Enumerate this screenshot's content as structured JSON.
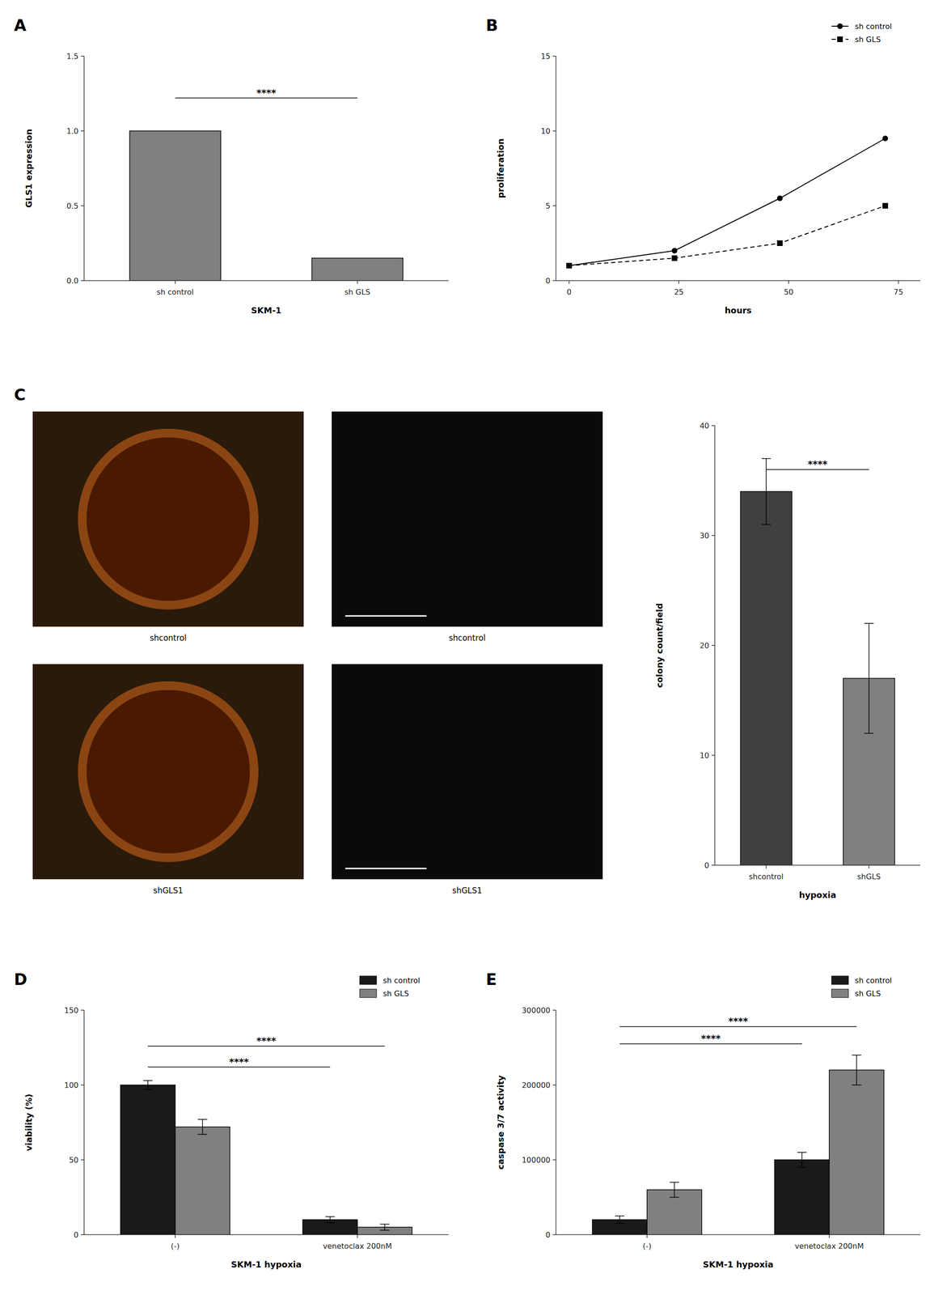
{
  "chart_data": [
    {
      "type": "bar",
      "title": "A",
      "categories": [
        "sh control",
        "sh GLS"
      ],
      "values": [
        1.0,
        0.15
      ],
      "color": "#808080",
      "xlabel": "SKM-1",
      "ylabel": "GLS1 expression",
      "ylim": [
        0,
        1.5
      ],
      "yticks": [
        {
          "value": 0,
          "label": "0.0"
        },
        0.5,
        {
          "value": 1,
          "label": "1.0"
        },
        1.5
      ],
      "grid": false,
      "annotations": [
        {
          "text": "****",
          "y": 1.22
        }
      ]
    },
    {
      "type": "line",
      "title": "B",
      "x": [
        0,
        24,
        48,
        72
      ],
      "series": [
        {
          "name": "sh control",
          "color": "#000000",
          "marker": "circle",
          "line_style": "solid",
          "values": [
            1.0,
            2.0,
            5.5,
            9.5
          ]
        },
        {
          "name": "sh GLS",
          "color": "#000000",
          "marker": "square",
          "line_style": "dashed",
          "values": [
            1.0,
            1.5,
            2.5,
            5.0
          ]
        }
      ],
      "xlabel": "hours",
      "ylabel": "proliferation",
      "xlim": [
        -3,
        80
      ],
      "xticks": [
        0,
        25,
        50,
        75
      ],
      "ylim": [
        0,
        15
      ],
      "yticks": [
        0,
        5,
        10,
        15
      ],
      "legend": "upper right",
      "grid": false
    },
    {
      "type": "image",
      "title": "C",
      "annotations": [
        "shcontrol",
        "shGLS1",
        "shcontrol",
        "shGLS1"
      ]
    },
    {
      "type": "bar",
      "categories": [
        "shcontrol",
        "shGLS"
      ],
      "values": [
        34,
        17
      ],
      "errors": [
        3,
        5
      ],
      "colors": [
        "#404040",
        "#808080"
      ],
      "xlabel": "hypoxia",
      "ylabel": "colony count/field",
      "ylim": [
        0,
        40
      ],
      "yticks": [
        0,
        10,
        20,
        30,
        40
      ],
      "grid": false,
      "annotations": [
        {
          "text": "****",
          "y": 36
        }
      ]
    },
    {
      "type": "bar",
      "title": "D",
      "categories": [
        "(-)",
        "venetoclax 200nM"
      ],
      "series": [
        {
          "name": "sh control",
          "color": "#1a1a1a",
          "values": [
            100,
            10
          ],
          "errors": [
            3,
            2
          ]
        },
        {
          "name": "sh GLS",
          "color": "#808080",
          "values": [
            72,
            5
          ],
          "errors": [
            5,
            2
          ]
        }
      ],
      "xlabel": "SKM-1 hypoxia",
      "ylabel": "viability (%)",
      "ylim": [
        0,
        150
      ],
      "yticks": [
        0,
        50,
        100,
        150
      ],
      "legend": "upper right",
      "grid": false,
      "annotations": [
        {
          "text": "****",
          "y": 112
        },
        {
          "text": "****",
          "y": 126
        }
      ]
    },
    {
      "type": "bar",
      "title": "E",
      "categories": [
        "(-)",
        "venetoclax 200nM"
      ],
      "series": [
        {
          "name": "sh control",
          "color": "#1a1a1a",
          "values": [
            20000,
            100000
          ],
          "errors": [
            5000,
            10000
          ]
        },
        {
          "name": "sh GLS",
          "color": "#808080",
          "values": [
            60000,
            220000
          ],
          "errors": [
            10000,
            20000
          ]
        }
      ],
      "xlabel": "SKM-1 hypoxia",
      "ylabel": "caspase 3/7 activity",
      "ylim": [
        0,
        300000
      ],
      "yticks": [
        0,
        100000,
        200000,
        300000
      ],
      "legend": "upper right",
      "grid": false,
      "annotations": [
        {
          "text": "****",
          "y": 255000
        },
        {
          "text": "****",
          "y": 278000
        }
      ]
    }
  ]
}
